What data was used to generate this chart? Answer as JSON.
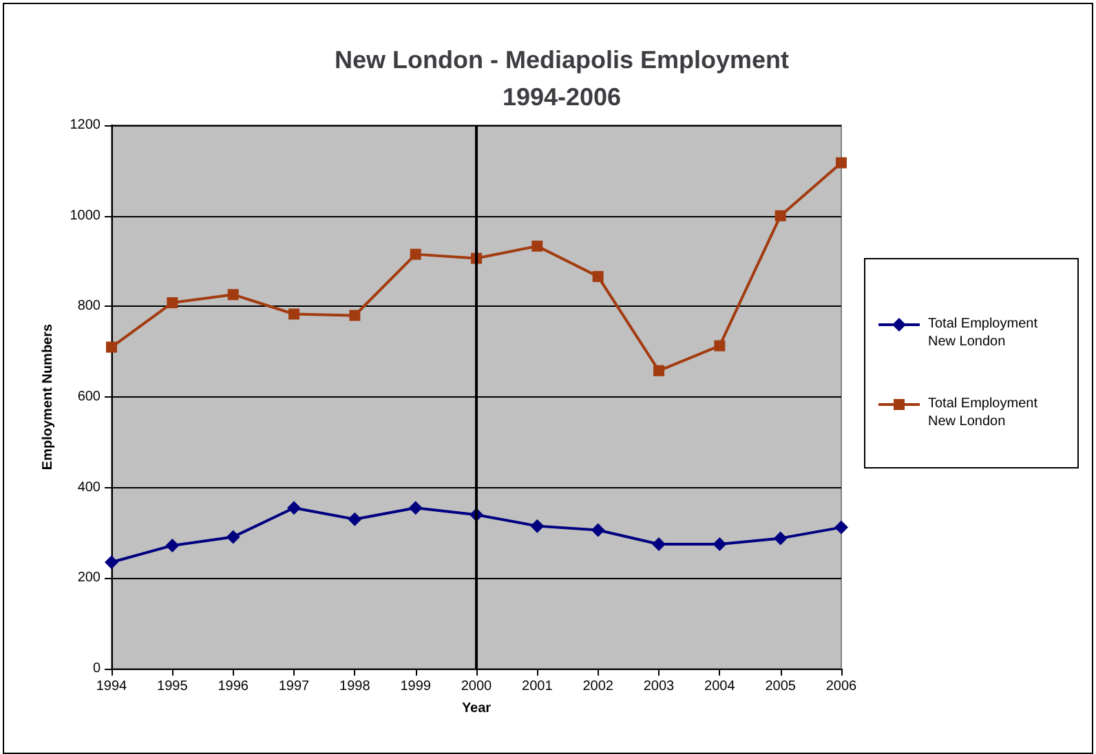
{
  "chart_data": {
    "type": "line",
    "title": "New London - Mediapolis Employment\n1994-2006",
    "xlabel": "Year",
    "ylabel": "Employment Numbers",
    "x": [
      1994,
      1995,
      1996,
      1997,
      1998,
      1999,
      2000,
      2001,
      2002,
      2003,
      2004,
      2005,
      2006
    ],
    "series": [
      {
        "name": "Total Employment New London",
        "color": "#000080",
        "marker": "diamond",
        "values": [
          235,
          272,
          291,
          355,
          330,
          355,
          340,
          315,
          306,
          275,
          275,
          288,
          312
        ]
      },
      {
        "name": "Total Employment New London",
        "color": "#a33b10",
        "marker": "square",
        "values": [
          710,
          808,
          826,
          783,
          780,
          915,
          906,
          933,
          866,
          658,
          713,
          1000,
          1117
        ]
      }
    ],
    "xlim": [
      1994,
      2006
    ],
    "xticks": [
      1994,
      1995,
      1996,
      1997,
      1998,
      1999,
      2000,
      2001,
      2002,
      2003,
      2004,
      2005,
      2006
    ],
    "ylim": [
      0,
      1200
    ],
    "yticks": [
      0,
      200,
      400,
      600,
      800,
      1000,
      1200
    ],
    "ref_lines": [
      {
        "axis": "x",
        "value": 2000,
        "color": "#000000"
      }
    ],
    "grid": "y",
    "legend": "right"
  }
}
